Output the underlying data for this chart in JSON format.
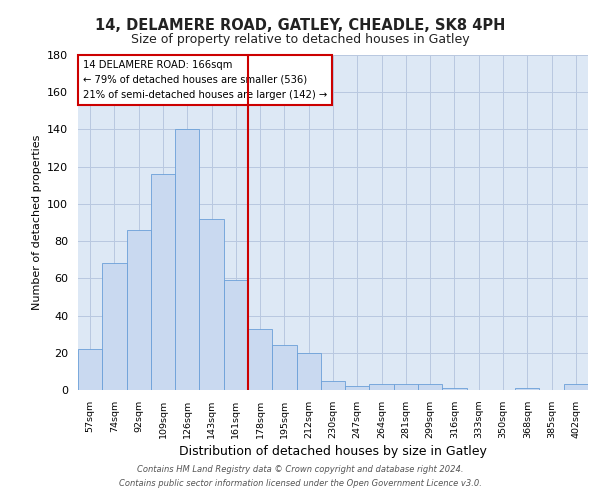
{
  "title": "14, DELAMERE ROAD, GATLEY, CHEADLE, SK8 4PH",
  "subtitle": "Size of property relative to detached houses in Gatley",
  "xlabel": "Distribution of detached houses by size in Gatley",
  "ylabel": "Number of detached properties",
  "bar_labels": [
    "57sqm",
    "74sqm",
    "92sqm",
    "109sqm",
    "126sqm",
    "143sqm",
    "161sqm",
    "178sqm",
    "195sqm",
    "212sqm",
    "230sqm",
    "247sqm",
    "264sqm",
    "281sqm",
    "299sqm",
    "316sqm",
    "333sqm",
    "350sqm",
    "368sqm",
    "385sqm",
    "402sqm"
  ],
  "bar_heights": [
    22,
    68,
    86,
    116,
    140,
    92,
    59,
    33,
    24,
    20,
    5,
    2,
    3,
    3,
    3,
    1,
    0,
    0,
    1,
    0,
    3
  ],
  "bar_color": "#c9d9f0",
  "bar_edge_color": "#6a9fd8",
  "property_line_x": 6.5,
  "property_line_label": "14 DELAMERE ROAD: 166sqm",
  "annotation_line1": "← 79% of detached houses are smaller (536)",
  "annotation_line2": "21% of semi-detached houses are larger (142) →",
  "vline_color": "#cc0000",
  "ylim": [
    0,
    180
  ],
  "yticks": [
    0,
    20,
    40,
    60,
    80,
    100,
    120,
    140,
    160,
    180
  ],
  "footer_line1": "Contains HM Land Registry data © Crown copyright and database right 2024.",
  "footer_line2": "Contains public sector information licensed under the Open Government Licence v3.0.",
  "bg_color": "#dde8f5",
  "fig_bg_color": "#ffffff",
  "grid_color": "#b8c8e0"
}
